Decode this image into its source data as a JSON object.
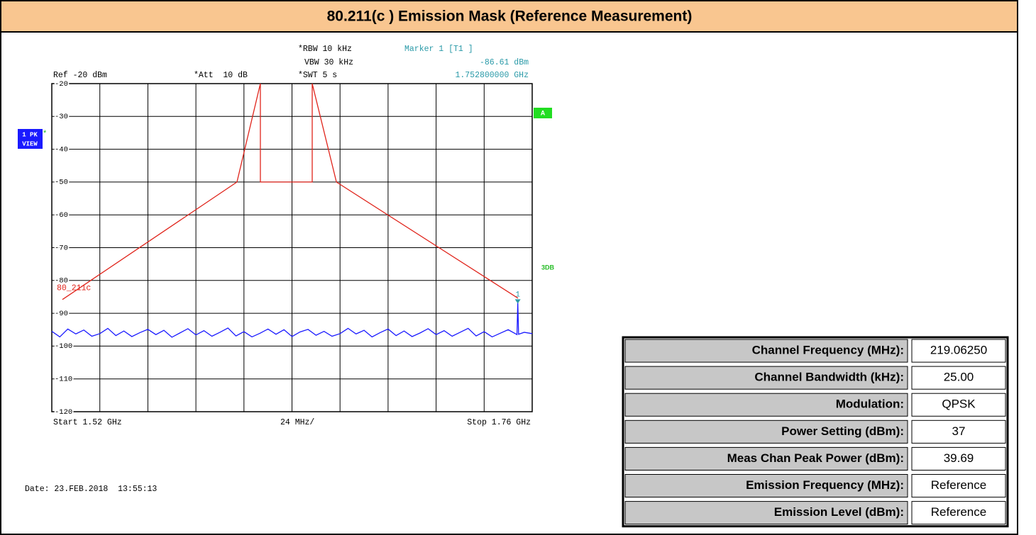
{
  "title": "80.211(c ) Emission Mask (Reference Measurement)",
  "analyzer": {
    "rbw": "*RBW 10 kHz",
    "vbw": "VBW 30 kHz",
    "swt": "*SWT 5 s",
    "ref": "Ref -20 dBm",
    "att": "*Att  10 dB",
    "marker_title": "Marker 1 [T1 ]",
    "marker_level": "-86.61 dBm",
    "marker_freq": "1.752800000 GHz",
    "trace_label": [
      "1 PK",
      "VIEW"
    ],
    "trace_flag": "*",
    "display_a": "A",
    "display_3db": "3DB",
    "start": "Start 1.52 GHz",
    "span_div": "24 MHz/",
    "stop": "Stop 1.76 GHz",
    "date": "Date: 23.FEB.2018  13:55:13"
  },
  "chart_data": {
    "type": "line",
    "xlim": [
      1.52,
      1.76
    ],
    "xticks": [
      1.52,
      1.544,
      1.568,
      1.592,
      1.616,
      1.64,
      1.664,
      1.688,
      1.712,
      1.736,
      1.76
    ],
    "ylim": [
      -120,
      -20
    ],
    "yticks": [
      -20,
      -30,
      -40,
      -50,
      -60,
      -70,
      -80,
      -90,
      -100,
      -110,
      -120
    ],
    "grid": true,
    "series": [
      {
        "name": "80_211c",
        "color": "#e0241b",
        "x": [
          1.5253,
          1.6125,
          1.6242,
          1.6242,
          1.6501,
          1.6501,
          1.6622,
          1.7529
        ],
        "values": [
          -85.8,
          -50,
          -20,
          -50,
          -50,
          -20,
          -50,
          -85.4
        ]
      },
      {
        "color": "#1a1aff",
        "x": [
          1.52,
          1.524,
          1.528,
          1.532,
          1.536,
          1.54,
          1.544,
          1.548,
          1.552,
          1.556,
          1.56,
          1.564,
          1.568,
          1.572,
          1.576,
          1.58,
          1.584,
          1.588,
          1.592,
          1.596,
          1.6,
          1.604,
          1.608,
          1.612,
          1.616,
          1.62,
          1.624,
          1.628,
          1.632,
          1.636,
          1.64,
          1.644,
          1.648,
          1.652,
          1.656,
          1.66,
          1.664,
          1.668,
          1.672,
          1.676,
          1.68,
          1.684,
          1.688,
          1.692,
          1.696,
          1.7,
          1.704,
          1.708,
          1.712,
          1.716,
          1.72,
          1.724,
          1.728,
          1.732,
          1.736,
          1.74,
          1.744,
          1.748,
          1.7524,
          1.7528,
          1.7532,
          1.756,
          1.76
        ],
        "values": [
          -95.5,
          -97.2,
          -94.8,
          -96.3,
          -95.1,
          -97.0,
          -96.2,
          -94.6,
          -96.8,
          -95.4,
          -97.1,
          -95.9,
          -94.9,
          -96.5,
          -95.2,
          -97.3,
          -96.0,
          -94.7,
          -96.6,
          -95.3,
          -97.0,
          -95.8,
          -94.5,
          -96.9,
          -95.6,
          -97.2,
          -96.1,
          -94.8,
          -96.4,
          -95.0,
          -97.1,
          -95.7,
          -94.9,
          -96.7,
          -95.5,
          -97.0,
          -96.2,
          -94.6,
          -96.3,
          -95.2,
          -97.2,
          -95.9,
          -94.8,
          -96.8,
          -95.4,
          -97.1,
          -96.0,
          -94.7,
          -96.5,
          -95.3,
          -97.0,
          -95.8,
          -94.6,
          -96.9,
          -95.6,
          -97.2,
          -96.1,
          -95.0,
          -96.5,
          -86.61,
          -96.4,
          -95.8,
          -96.2
        ]
      }
    ],
    "marker": {
      "label": "1",
      "x": 1.7528,
      "y": -86.61,
      "color": "#2a9aa8"
    }
  },
  "table": {
    "rows": [
      [
        "Channel Frequency (MHz):",
        "219.06250"
      ],
      [
        "Channel Bandwidth (kHz):",
        "25.00"
      ],
      [
        "Modulation:",
        "QPSK"
      ],
      [
        "Power Setting (dBm):",
        "37"
      ],
      [
        "Meas Chan Peak Power (dBm):",
        "39.69"
      ],
      [
        "Emission Frequency (MHz):",
        "Reference"
      ],
      [
        "Emission Level (dBm):",
        "Reference"
      ]
    ]
  }
}
